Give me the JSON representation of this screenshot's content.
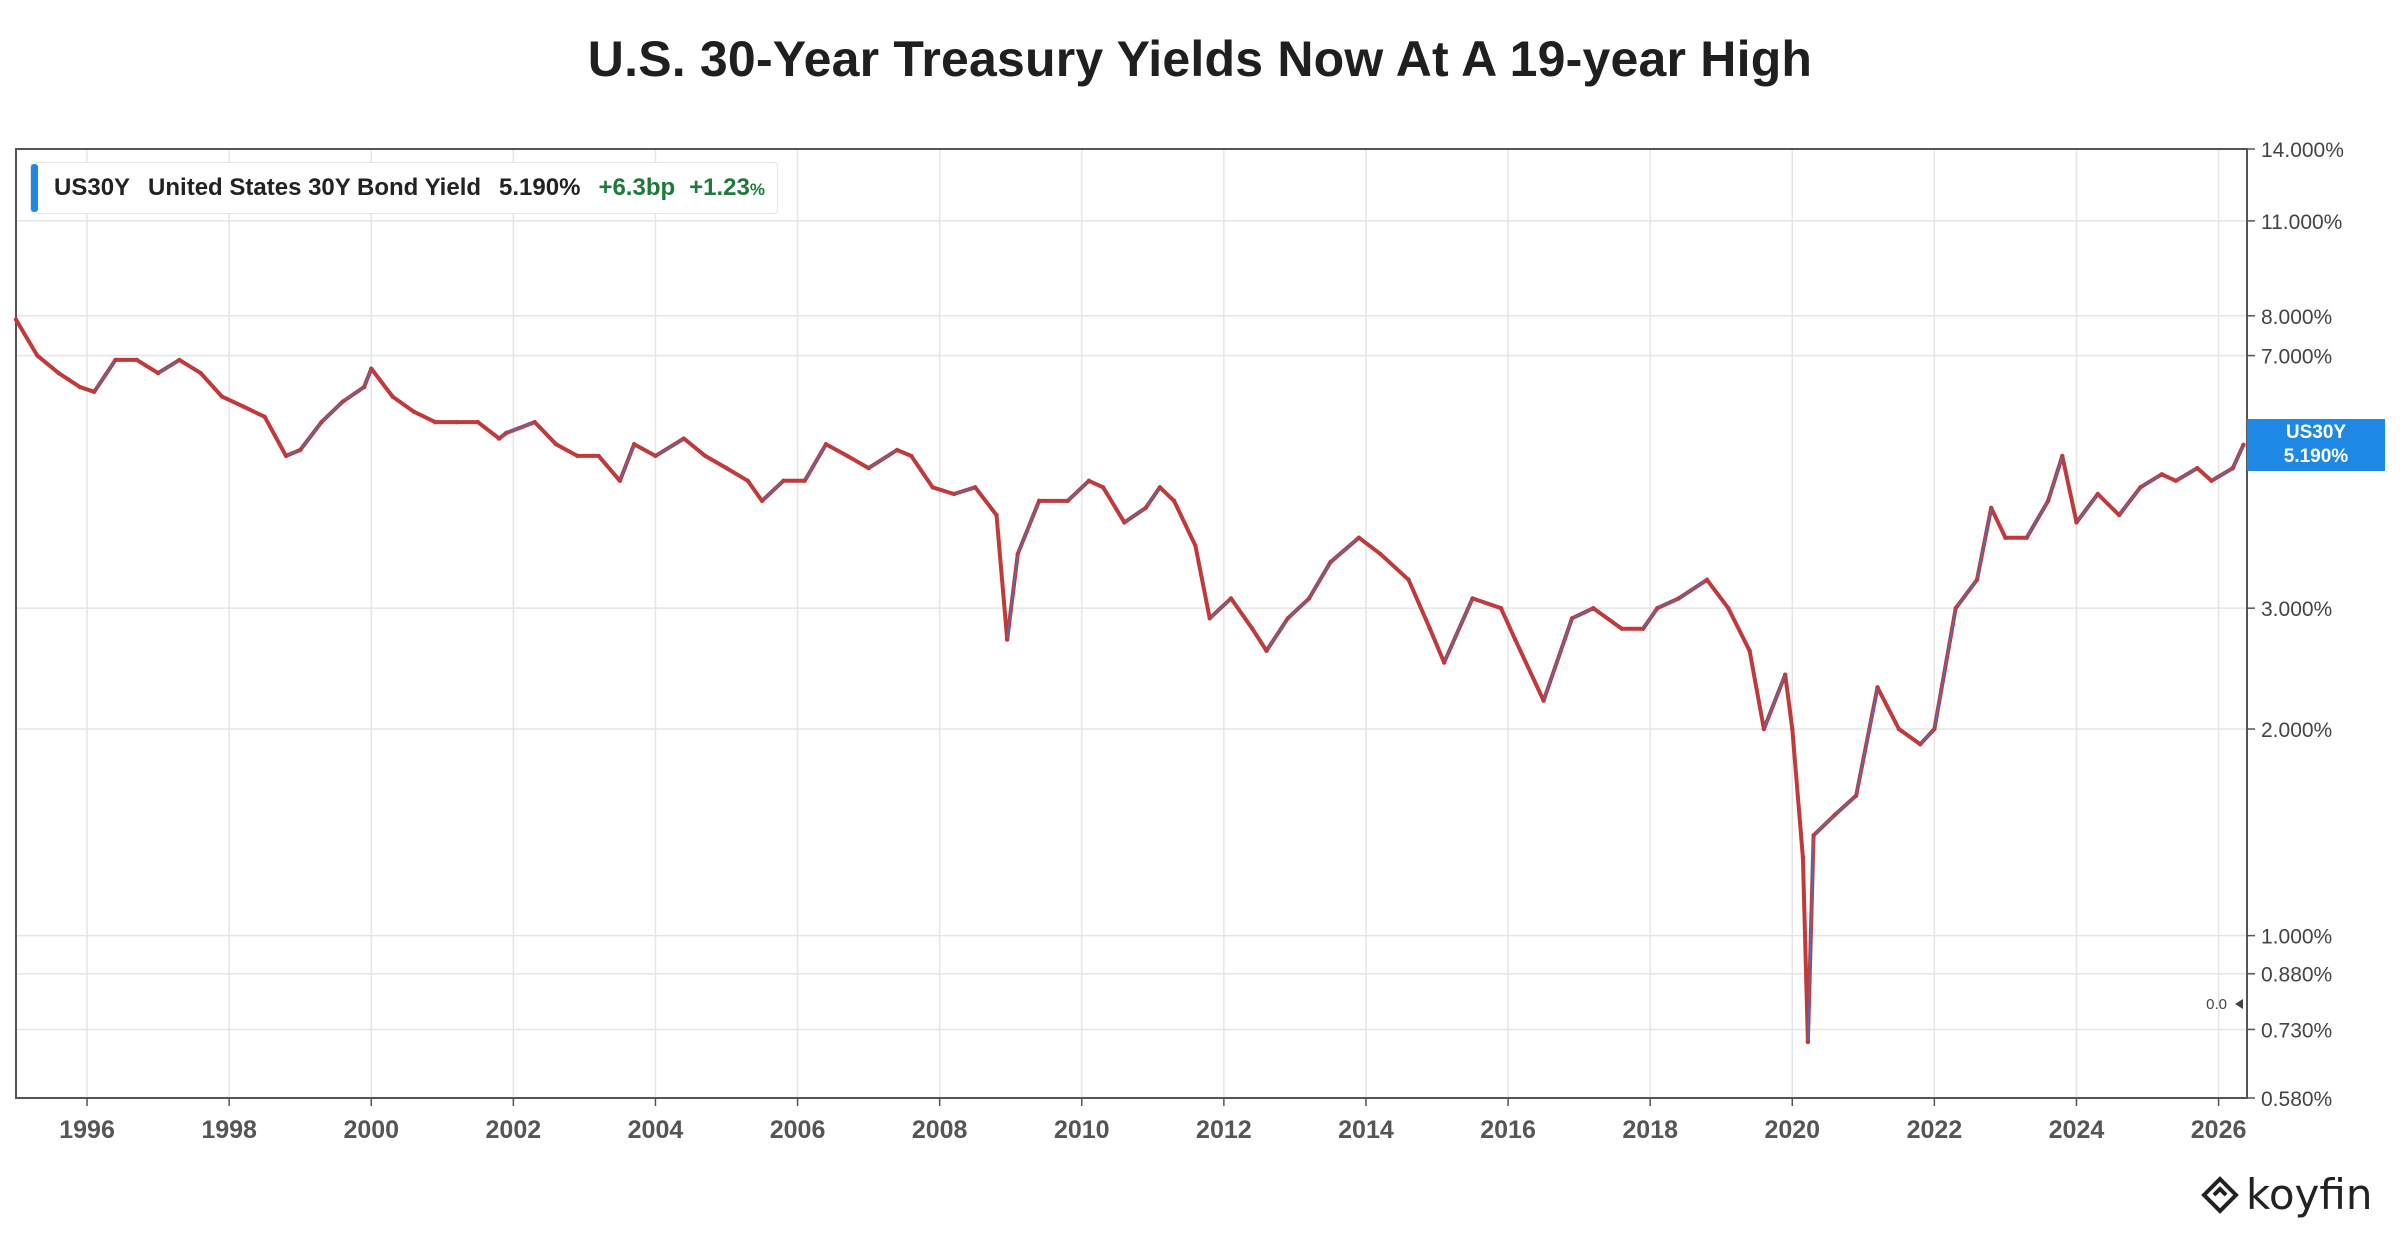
{
  "chart_data": {
    "type": "line",
    "title": "U.S. 30-Year Treasury Yields Now At A 19-year High",
    "y_scale": "log",
    "ylim": [
      0.58,
      14.0
    ],
    "xlim": [
      1995.0,
      2026.4
    ],
    "y_ticks": [
      "14.000%",
      "11.000%",
      "8.000%",
      "7.000%",
      "3.000%",
      "2.000%",
      "1.000%",
      "0.880%",
      "0.730%",
      "0.580%"
    ],
    "y_tick_values": [
      14.0,
      11.0,
      8.0,
      7.0,
      3.0,
      2.0,
      1.0,
      0.88,
      0.73,
      0.58
    ],
    "x_ticks": [
      "1996",
      "1998",
      "2000",
      "2002",
      "2004",
      "2006",
      "2008",
      "2010",
      "2012",
      "2014",
      "2016",
      "2018",
      "2020",
      "2022",
      "2024",
      "2026"
    ],
    "x_tick_values": [
      1996,
      1998,
      2000,
      2002,
      2004,
      2006,
      2008,
      2010,
      2012,
      2014,
      2016,
      2018,
      2020,
      2022,
      2024,
      2026
    ],
    "grid": true,
    "legend_position": "top-left",
    "line_color": "#c0393b",
    "accent_color": "#1e88e5",
    "series": [
      {
        "name": "US30Y",
        "x": [
          1995.0,
          1995.3,
          1995.6,
          1995.9,
          1996.1,
          1996.4,
          1996.7,
          1997.0,
          1997.3,
          1997.6,
          1997.9,
          1998.2,
          1998.5,
          1998.8,
          1999.0,
          1999.3,
          1999.6,
          1999.9,
          2000.0,
          2000.3,
          2000.6,
          2000.9,
          2001.2,
          2001.5,
          2001.8,
          2001.9,
          2002.3,
          2002.6,
          2002.9,
          2003.2,
          2003.5,
          2003.7,
          2004.0,
          2004.4,
          2004.7,
          2005.0,
          2005.3,
          2005.5,
          2005.8,
          2006.1,
          2006.4,
          2006.7,
          2007.0,
          2007.4,
          2007.6,
          2007.9,
          2008.2,
          2008.5,
          2008.8,
          2008.95,
          2009.1,
          2009.4,
          2009.8,
          2010.1,
          2010.3,
          2010.6,
          2010.9,
          2011.1,
          2011.3,
          2011.6,
          2011.8,
          2012.1,
          2012.4,
          2012.6,
          2012.9,
          2013.2,
          2013.5,
          2013.9,
          2014.2,
          2014.6,
          2014.9,
          2015.1,
          2015.5,
          2015.9,
          2016.1,
          2016.5,
          2016.9,
          2017.2,
          2017.6,
          2017.9,
          2018.1,
          2018.4,
          2018.8,
          2019.1,
          2019.4,
          2019.6,
          2019.9,
          2020.0,
          2020.15,
          2020.22,
          2020.3,
          2020.6,
          2020.9,
          2021.2,
          2021.5,
          2021.8,
          2022.0,
          2022.3,
          2022.6,
          2022.8,
          2023.0,
          2023.3,
          2023.6,
          2023.8,
          2024.0,
          2024.3,
          2024.6,
          2024.9,
          2025.2,
          2025.4,
          2025.7,
          2025.9,
          2026.2,
          2026.35
        ],
        "y": [
          7.9,
          7.0,
          6.6,
          6.3,
          6.2,
          6.9,
          6.9,
          6.6,
          6.9,
          6.6,
          6.1,
          5.9,
          5.7,
          5.0,
          5.1,
          5.6,
          6.0,
          6.3,
          6.7,
          6.1,
          5.8,
          5.6,
          5.6,
          5.6,
          5.3,
          5.4,
          5.6,
          5.2,
          5.0,
          5.0,
          4.6,
          5.2,
          5.0,
          5.3,
          5.0,
          4.8,
          4.6,
          4.3,
          4.6,
          4.6,
          5.2,
          5.0,
          4.8,
          5.1,
          5.0,
          4.5,
          4.4,
          4.5,
          4.1,
          2.7,
          3.6,
          4.3,
          4.3,
          4.6,
          4.5,
          4.0,
          4.2,
          4.5,
          4.3,
          3.7,
          2.9,
          3.1,
          2.8,
          2.6,
          2.9,
          3.1,
          3.5,
          3.8,
          3.6,
          3.3,
          2.8,
          2.5,
          3.1,
          3.0,
          2.7,
          2.2,
          2.9,
          3.0,
          2.8,
          2.8,
          3.0,
          3.1,
          3.3,
          3.0,
          2.6,
          2.0,
          2.4,
          2.0,
          1.3,
          0.7,
          1.4,
          1.5,
          1.6,
          2.3,
          2.0,
          1.9,
          2.0,
          3.0,
          3.3,
          4.2,
          3.8,
          3.8,
          4.3,
          5.0,
          4.0,
          4.4,
          4.1,
          4.5,
          4.7,
          4.6,
          4.8,
          4.6,
          4.8,
          5.19
        ]
      }
    ]
  },
  "legend": {
    "ticker": "US30Y",
    "name": "United States 30Y Bond Yield",
    "value": "5.190%",
    "change_bp": "+6.3bp",
    "change_pct": "+1.23",
    "pct_sign": "%"
  },
  "price_tag": {
    "ticker": "US30Y",
    "value": "5.190%"
  },
  "marker_label": "0.0",
  "brand": "koyfin"
}
